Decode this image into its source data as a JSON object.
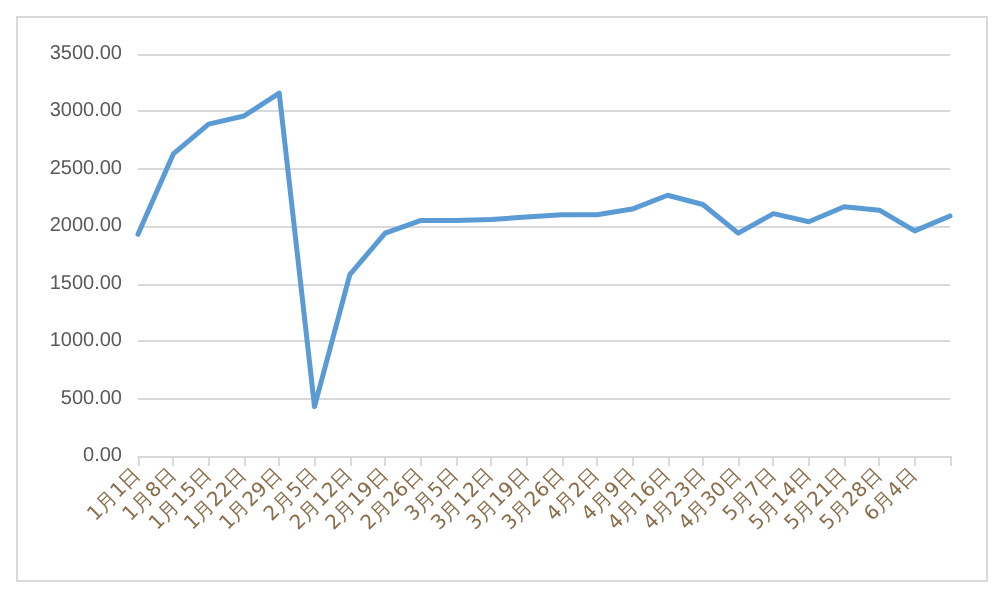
{
  "chart_data": {
    "type": "line",
    "categories": [
      "1月1日",
      "1月8日",
      "1月15日",
      "1月22日",
      "1月29日",
      "2月5日",
      "2月12日",
      "2月19日",
      "2月26日",
      "3月5日",
      "3月12日",
      "3月19日",
      "3月26日",
      "4月2日",
      "4月9日",
      "4月16日",
      "4月23日",
      "4月30日",
      "5月7日",
      "5月14日",
      "5月21日",
      "5月28日",
      "6月4日",
      null
    ],
    "series": [
      {
        "color": "#5b9bd5",
        "values": [
          1930,
          2630,
          2890,
          2960,
          3160,
          430,
          1580,
          1940,
          2050,
          2050,
          2060,
          2080,
          2100,
          2100,
          2150,
          2270,
          2190,
          1940,
          2110,
          2040,
          2170,
          2140,
          1960,
          2090
        ]
      }
    ],
    "ylim": [
      0,
      3500
    ],
    "yticks": [
      {
        "value": 0,
        "label": "0.00"
      },
      {
        "value": 500,
        "label": "500.00"
      },
      {
        "value": 1000,
        "label": "1000.00"
      },
      {
        "value": 1500,
        "label": "1500.00"
      },
      {
        "value": 2000,
        "label": "2000.00"
      },
      {
        "value": 2500,
        "label": "2500.00"
      },
      {
        "value": 3000,
        "label": "3000.00"
      },
      {
        "value": 3500,
        "label": "3500.00"
      }
    ],
    "grid": "y",
    "marker": "none",
    "line_style": "solid"
  }
}
